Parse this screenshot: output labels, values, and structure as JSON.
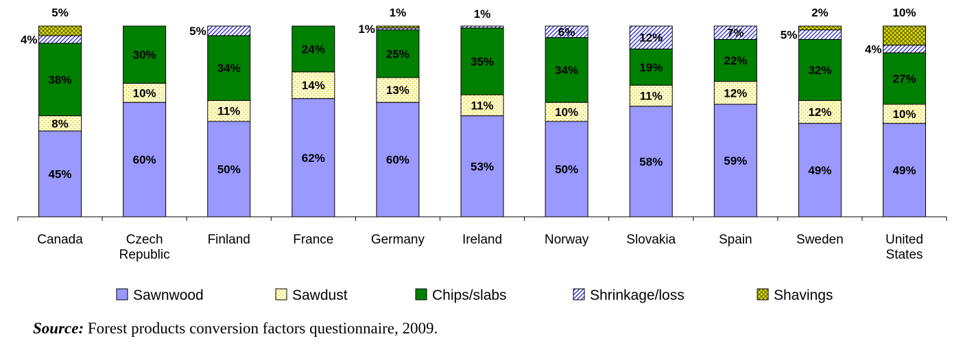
{
  "chart_data": {
    "type": "bar",
    "stacked": true,
    "categories": [
      [
        "Canada"
      ],
      [
        "Czech",
        "Republic"
      ],
      [
        "Finland"
      ],
      [
        "France"
      ],
      [
        "Germany"
      ],
      [
        "Ireland"
      ],
      [
        "Norway"
      ],
      [
        "Slovakia"
      ],
      [
        "Spain"
      ],
      [
        "Sweden"
      ],
      [
        "United",
        "States"
      ]
    ],
    "series": [
      {
        "name": "Sawnwood",
        "values": [
          45,
          60,
          50,
          62,
          60,
          53,
          50,
          58,
          59,
          49,
          49
        ],
        "color": "#9999ff",
        "pattern": "solid"
      },
      {
        "name": "Sawdust",
        "values": [
          8,
          10,
          11,
          14,
          13,
          11,
          10,
          11,
          12,
          12,
          10
        ],
        "color": "#ffffcc",
        "pattern": "dots"
      },
      {
        "name": "Chips/slabs",
        "values": [
          38,
          30,
          34,
          24,
          25,
          35,
          34,
          19,
          22,
          32,
          27
        ],
        "color": "#008000",
        "pattern": "solid"
      },
      {
        "name": "Shrinkage/loss",
        "values": [
          4,
          0,
          5,
          0,
          1,
          1,
          6,
          12,
          7,
          5,
          4
        ],
        "color": "#ccccff",
        "pattern": "diagonal"
      },
      {
        "name": "Shavings",
        "values": [
          5,
          0,
          0,
          0,
          1,
          0,
          0,
          0,
          0,
          2,
          10
        ],
        "color": "#cccc00",
        "pattern": "crosshatch"
      }
    ],
    "labels": [
      [
        "45%",
        "8%",
        "38%",
        "4%",
        "5%"
      ],
      [
        "60%",
        "10%",
        "30%",
        "",
        ""
      ],
      [
        "50%",
        "11%",
        "34%",
        "5%",
        ""
      ],
      [
        "62%",
        "14%",
        "24%",
        "",
        ""
      ],
      [
        "60%",
        "13%",
        "25%",
        "1%",
        "1%"
      ],
      [
        "53%",
        "11%",
        "35%",
        "1%",
        ""
      ],
      [
        "50%",
        "10%",
        "34%",
        "6%",
        ""
      ],
      [
        "58%",
        "11%",
        "19%",
        "12%",
        ""
      ],
      [
        "59%",
        "12%",
        "22%",
        "7%",
        ""
      ],
      [
        "49%",
        "12%",
        "32%",
        "5%",
        "2%"
      ],
      [
        "49%",
        "10%",
        "27%",
        "4%",
        "10%"
      ]
    ],
    "ylim": [
      0,
      100
    ],
    "grid": false,
    "legend_position": "bottom",
    "source_label": "Source:",
    "source_text": " Forest products conversion factors questionnaire, 2009."
  }
}
